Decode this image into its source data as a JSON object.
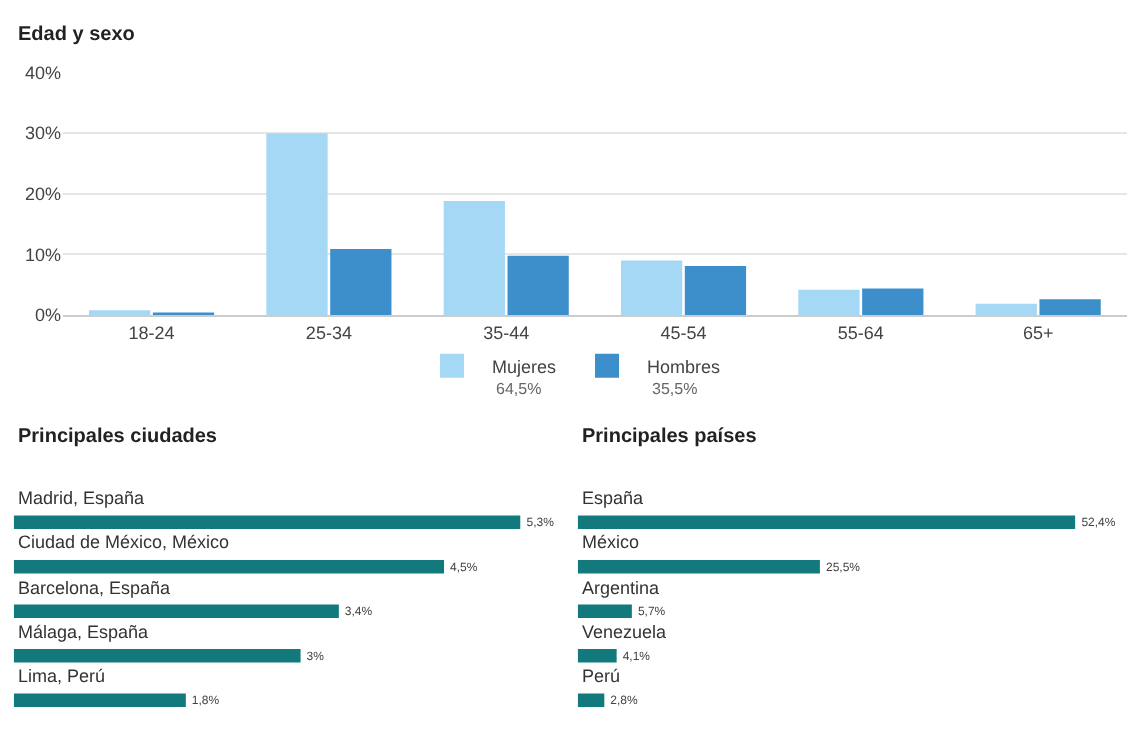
{
  "chart_data": [
    {
      "type": "bar",
      "title": "Edad y sexo",
      "categories": [
        "18-24",
        "25-34",
        "35-44",
        "45-54",
        "55-64",
        "65+"
      ],
      "series": [
        {
          "name": "Mujeres",
          "color": "#a5d8f5",
          "values": [
            0.8,
            30,
            18.8,
            9,
            4.2,
            1.9
          ]
        },
        {
          "name": "Hombres",
          "color": "#3d8fcb",
          "values": [
            0.4,
            10.9,
            9.8,
            8.1,
            4.4,
            2.6
          ]
        }
      ],
      "annotations": [
        "64,5%",
        "35,5%"
      ],
      "ylim": [
        0,
        40
      ],
      "yticks": [
        {
          "value": 0,
          "label": "0%"
        },
        {
          "value": 10,
          "label": "10%"
        },
        {
          "value": 20,
          "label": "20%"
        },
        {
          "value": 30,
          "label": "30%"
        },
        {
          "value": 40,
          "label": "40%"
        }
      ],
      "grid": "y",
      "legend": "bottom"
    },
    {
      "type": "bar",
      "orientation": "horizontal",
      "title": "Principales ciudades",
      "categories": [
        "Madrid, España",
        "Ciudad de México, México",
        "Barcelona, España",
        "Málaga, España",
        "Lima, Perú"
      ],
      "values": [
        5.3,
        4.5,
        3.4,
        3,
        1.8
      ],
      "value_labels": [
        "5,3%",
        "4,5%",
        "3,4%",
        "3%",
        "1,8%"
      ],
      "color": "#127a7c"
    },
    {
      "type": "bar",
      "orientation": "horizontal",
      "title": "Principales países",
      "categories": [
        "España",
        "México",
        "Argentina",
        "Venezuela",
        "Perú"
      ],
      "values": [
        52.4,
        25.5,
        5.7,
        4.1,
        2.8
      ],
      "value_labels": [
        "52,4%",
        "25,5%",
        "5,7%",
        "4,1%",
        "2,8%"
      ],
      "color": "#127a7c"
    }
  ]
}
